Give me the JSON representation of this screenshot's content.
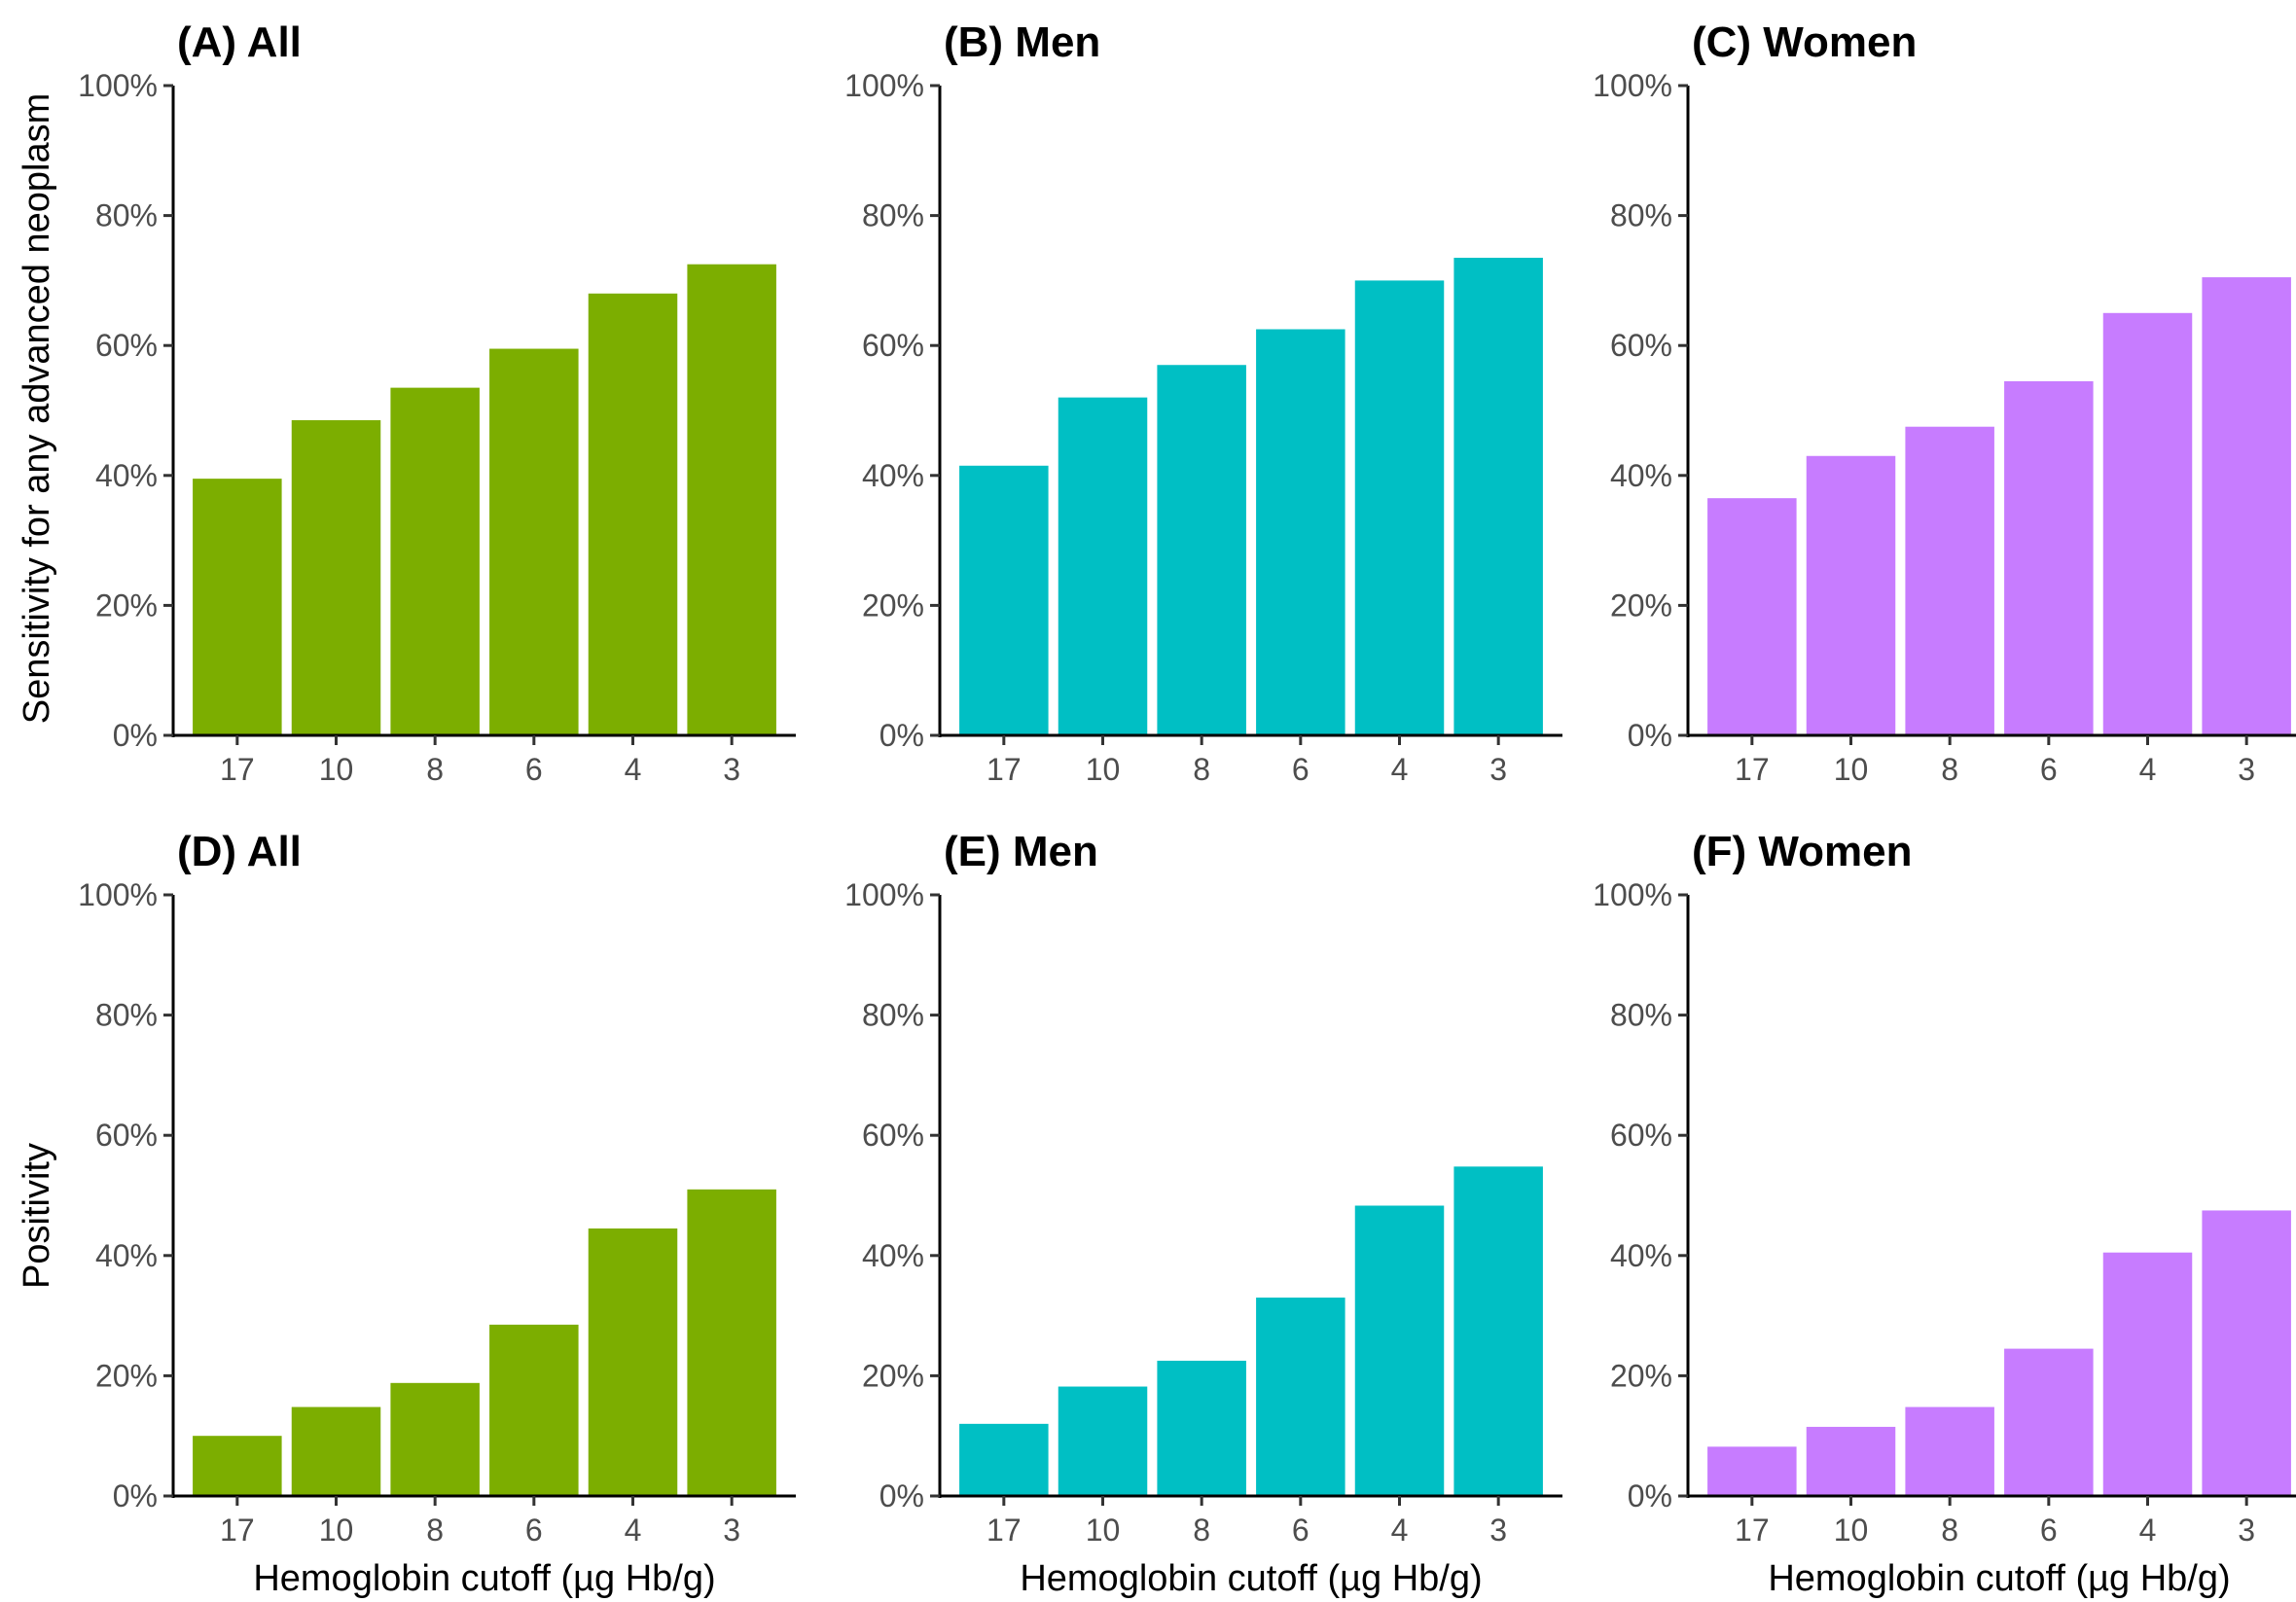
{
  "colors": {
    "All": "#7cae00",
    "Men": "#00bfc4",
    "Women": "#c77cff"
  },
  "row_ylabels": [
    "Sensitivity for any advanced neoplasm",
    "Positivity"
  ],
  "chart_data": [
    {
      "type": "bar",
      "panel": "A",
      "title": "(A) All",
      "color_key": "All",
      "categories": [
        "17",
        "10",
        "8",
        "6",
        "4",
        "3"
      ],
      "values": [
        39.5,
        48.5,
        53.5,
        59.5,
        68,
        72.5
      ],
      "ylabel": "Sensitivity for any advanced neoplasm",
      "xlabel": "",
      "ylim": [
        0,
        100
      ],
      "yticks": [
        "0%",
        "20%",
        "40%",
        "60%",
        "80%",
        "100%"
      ],
      "grid": false
    },
    {
      "type": "bar",
      "panel": "B",
      "title": "(B) Men",
      "color_key": "Men",
      "categories": [
        "17",
        "10",
        "8",
        "6",
        "4",
        "3"
      ],
      "values": [
        41.5,
        52,
        57,
        62.5,
        70,
        73.5
      ],
      "ylabel": "",
      "xlabel": "",
      "ylim": [
        0,
        100
      ],
      "yticks": [
        "0%",
        "20%",
        "40%",
        "60%",
        "80%",
        "100%"
      ],
      "grid": false
    },
    {
      "type": "bar",
      "panel": "C",
      "title": "(C) Women",
      "color_key": "Women",
      "categories": [
        "17",
        "10",
        "8",
        "6",
        "4",
        "3"
      ],
      "values": [
        36.5,
        43,
        47.5,
        54.5,
        65,
        70.5
      ],
      "ylabel": "",
      "xlabel": "",
      "ylim": [
        0,
        100
      ],
      "yticks": [
        "0%",
        "20%",
        "40%",
        "60%",
        "80%",
        "100%"
      ],
      "grid": false
    },
    {
      "type": "bar",
      "panel": "D",
      "title": "(D) All",
      "color_key": "All",
      "categories": [
        "17",
        "10",
        "8",
        "6",
        "4",
        "3"
      ],
      "values": [
        10,
        14.8,
        18.8,
        28.5,
        44.5,
        51
      ],
      "ylabel": "Positivity",
      "xlabel": "Hemoglobin cutoff (µg Hb/g)",
      "ylim": [
        0,
        100
      ],
      "yticks": [
        "0%",
        "20%",
        "40%",
        "60%",
        "80%",
        "100%"
      ],
      "grid": false
    },
    {
      "type": "bar",
      "panel": "E",
      "title": "(E) Men",
      "color_key": "Men",
      "categories": [
        "17",
        "10",
        "8",
        "6",
        "4",
        "3"
      ],
      "values": [
        12,
        18.2,
        22.5,
        33,
        48.3,
        54.8
      ],
      "ylabel": "",
      "xlabel": "Hemoglobin cutoff (µg Hb/g)",
      "ylim": [
        0,
        100
      ],
      "yticks": [
        "0%",
        "20%",
        "40%",
        "60%",
        "80%",
        "100%"
      ],
      "grid": false
    },
    {
      "type": "bar",
      "panel": "F",
      "title": "(F) Women",
      "color_key": "Women",
      "categories": [
        "17",
        "10",
        "8",
        "6",
        "4",
        "3"
      ],
      "values": [
        8.2,
        11.5,
        14.8,
        24.5,
        40.5,
        47.5
      ],
      "ylabel": "",
      "xlabel": "Hemoglobin cutoff (µg Hb/g)",
      "ylim": [
        0,
        100
      ],
      "yticks": [
        "0%",
        "20%",
        "40%",
        "60%",
        "80%",
        "100%"
      ],
      "grid": false
    }
  ]
}
